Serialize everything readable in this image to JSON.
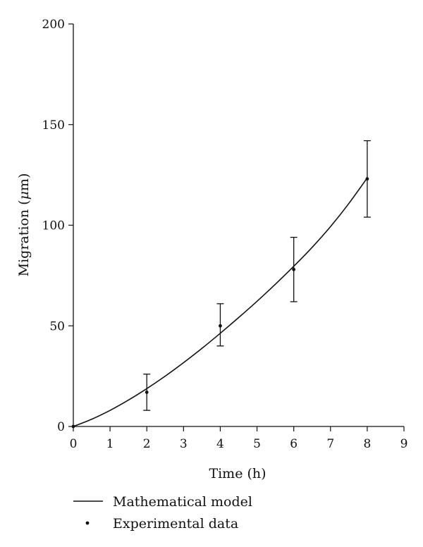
{
  "chart_data": {
    "type": "line",
    "xlabel": "Time (h)",
    "ylabel_prefix": "Migration (",
    "ylabel_unit": "μ",
    "ylabel_suffix": "m)",
    "xlim": [
      0,
      9
    ],
    "ylim": [
      0,
      200
    ],
    "x_ticks": [
      0,
      1,
      2,
      3,
      4,
      5,
      6,
      7,
      8,
      9
    ],
    "y_ticks": [
      0,
      50,
      100,
      150,
      200
    ],
    "grid": false,
    "legend_position": "bottom-left",
    "series": [
      {
        "name": "Mathematical model",
        "kind": "line",
        "x": [
          0,
          0.5,
          1,
          1.5,
          2,
          2.5,
          3,
          3.5,
          4,
          4.5,
          5,
          5.5,
          6,
          6.5,
          7,
          7.5,
          8
        ],
        "y": [
          0,
          3.6,
          8.0,
          13.1,
          18.8,
          25.0,
          31.7,
          38.8,
          46.3,
          54.1,
          62.2,
          70.7,
          79.6,
          89.0,
          99.3,
          110.8,
          123.5
        ]
      },
      {
        "name": "Experimental data",
        "kind": "scatter",
        "x": [
          0,
          2,
          4,
          6,
          8
        ],
        "y": [
          0,
          17,
          50,
          78,
          123
        ],
        "err_low": [
          0,
          8,
          40,
          62,
          104
        ],
        "err_high": [
          0,
          26,
          61,
          94,
          142
        ]
      }
    ]
  }
}
